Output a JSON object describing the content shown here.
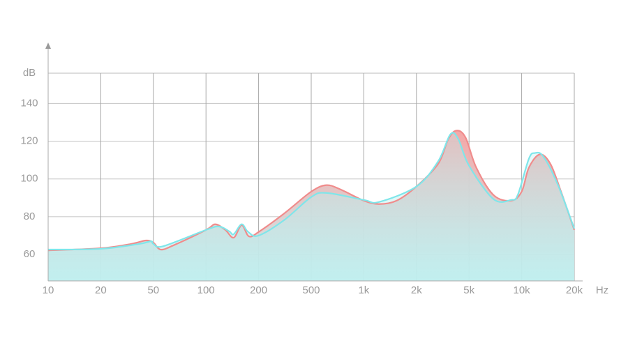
{
  "chart_data": {
    "type": "area",
    "ylabel": "dB",
    "xlabel": "Hz",
    "xscale": "log",
    "grid": true,
    "xlim": [
      10,
      20000
    ],
    "ylim": [
      46,
      156
    ],
    "yticks": [
      60,
      80,
      100,
      120,
      140
    ],
    "xticks": [
      10,
      20,
      50,
      100,
      200,
      500,
      {
        "value": 1000,
        "label": "1k"
      },
      {
        "value": 2000,
        "label": "2k"
      },
      {
        "value": 5000,
        "label": "5k"
      },
      {
        "value": 10000,
        "label": "10k"
      },
      {
        "value": 20000,
        "label": "20k"
      }
    ],
    "series": [
      {
        "color": "#f08c8c",
        "x": [
          10,
          20,
          34,
          44,
          50,
          55,
          65,
          100,
          113,
          129,
          144,
          160,
          176,
          200,
          316,
          500,
          611,
          737,
          1000,
          1220,
          1540,
          2000,
          2920,
          3480,
          4010,
          4700,
          5500,
          6900,
          8700,
          10000,
          11000,
          12700,
          14600,
          16800,
          20000
        ],
        "values": [
          62.2,
          63.3,
          65.6,
          67.4,
          66.3,
          62.6,
          64.8,
          73,
          76,
          73,
          68.9,
          75.5,
          69.6,
          71.9,
          82,
          93.3,
          96.7,
          94.4,
          88.5,
          86.7,
          88.5,
          96,
          108,
          121,
          125.6,
          122,
          106,
          91.5,
          88.5,
          93.3,
          106,
          113,
          108,
          93.3,
          73
        ]
      },
      {
        "color": "#7fe6ea",
        "x": [
          10,
          20,
          39,
          48,
          50,
          57,
          100,
          119,
          136,
          144,
          160,
          174,
          200,
          316,
          500,
          611,
          1000,
          1220,
          2000,
          2920,
          3620,
          4150,
          5000,
          6900,
          8700,
          9500,
          11000,
          11900,
          13300,
          16100,
          20000
        ],
        "values": [
          62.6,
          63,
          65.6,
          67,
          65.6,
          64.4,
          73,
          74.8,
          72.2,
          70.7,
          76,
          72,
          70,
          78.5,
          90.4,
          92.6,
          88.9,
          87.8,
          96,
          109.3,
          123.7,
          121,
          107,
          89.3,
          88.9,
          91.5,
          110.7,
          113.7,
          111.9,
          97,
          73.7
        ]
      }
    ]
  }
}
